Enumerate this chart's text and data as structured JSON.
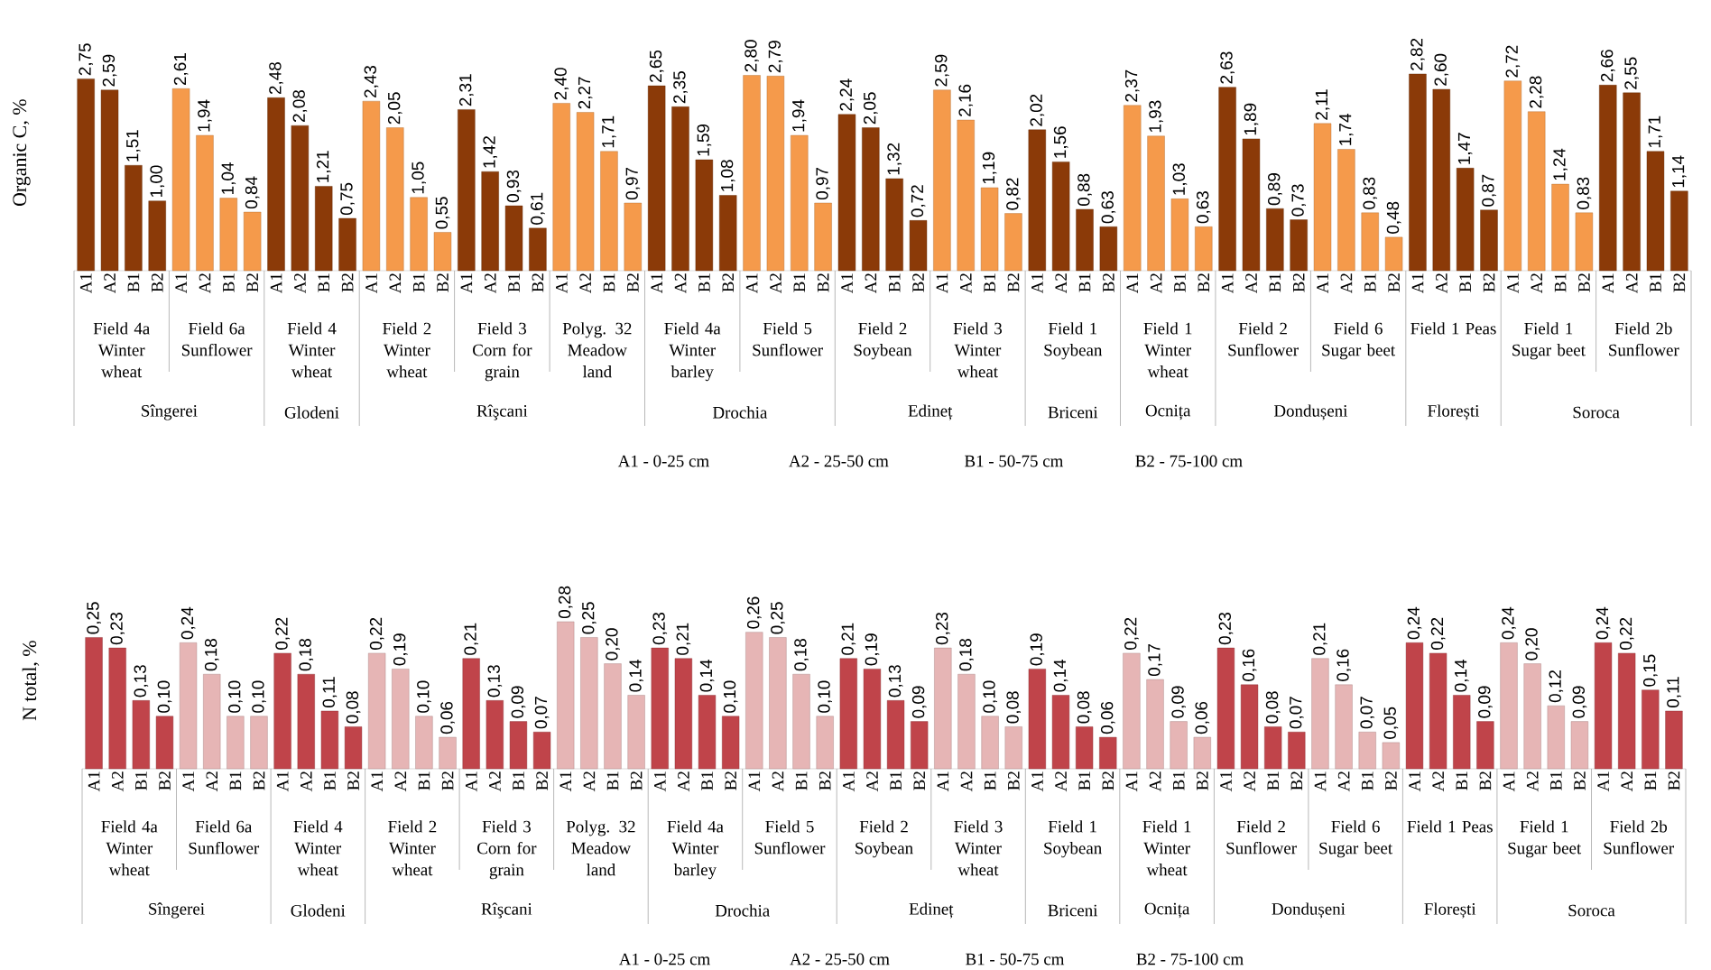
{
  "chart_data": [
    {
      "type": "bar",
      "ylabel": "Organic C, %",
      "categories": [
        "A1",
        "A2",
        "B1",
        "B2",
        "A1",
        "A2",
        "B1",
        "B2",
        "A1",
        "A2",
        "B1",
        "B2",
        "A1",
        "A2",
        "B1",
        "B2",
        "A1",
        "A2",
        "B1",
        "B2",
        "A1",
        "A2",
        "B1",
        "B2",
        "A1",
        "A2",
        "B1",
        "B2",
        "A1",
        "A2",
        "B1",
        "B2",
        "A1",
        "A2",
        "B1",
        "B2",
        "A1",
        "A2",
        "B1",
        "B2",
        "A1",
        "A2",
        "B1",
        "B2",
        "A1",
        "A2",
        "B1",
        "B2",
        "A1",
        "A2",
        "B1",
        "B2",
        "A1",
        "A2",
        "B1",
        "B2",
        "A1",
        "A2",
        "B1",
        "B2",
        "A1",
        "A2",
        "B1",
        "B2",
        "A1",
        "A2",
        "B1",
        "B2"
      ],
      "values": [
        2.75,
        2.59,
        1.51,
        1.0,
        2.61,
        1.94,
        1.04,
        0.84,
        2.48,
        2.08,
        1.21,
        0.75,
        2.43,
        2.05,
        1.05,
        0.55,
        2.31,
        1.42,
        0.93,
        0.61,
        2.4,
        2.27,
        1.71,
        0.97,
        2.65,
        2.35,
        1.59,
        1.08,
        2.8,
        2.79,
        1.94,
        0.97,
        2.24,
        2.05,
        1.32,
        0.72,
        2.59,
        2.16,
        1.19,
        0.82,
        2.02,
        1.56,
        0.88,
        0.63,
        2.37,
        1.93,
        1.03,
        0.63,
        2.63,
        1.89,
        0.89,
        0.73,
        2.11,
        1.74,
        0.83,
        0.48,
        2.82,
        2.6,
        1.47,
        0.87,
        2.72,
        2.28,
        1.24,
        0.83,
        2.66,
        2.55,
        1.71,
        1.14
      ],
      "value_labels": [
        "2,75",
        "2,59",
        "1,51",
        "1,00",
        "2,61",
        "1,94",
        "1,04",
        "0,84",
        "2,48",
        "2,08",
        "1,21",
        "0,75",
        "2,43",
        "2,05",
        "1,05",
        "0,55",
        "2,31",
        "1,42",
        "0,93",
        "0,61",
        "2,40",
        "2,27",
        "1,71",
        "0,97",
        "2,65",
        "2,35",
        "1,59",
        "1,08",
        "2,80",
        "2,79",
        "1,94",
        "0,97",
        "2,24",
        "2,05",
        "1,32",
        "0,72",
        "2,59",
        "2,16",
        "1,19",
        "0,82",
        "2,02",
        "1,56",
        "0,88",
        "0,63",
        "2,37",
        "1,93",
        "1,03",
        "0,63",
        "2,63",
        "1,89",
        "0,89",
        "0,73",
        "2,11",
        "1,74",
        "0,83",
        "0,48",
        "2,82",
        "2,60",
        "1,47",
        "0,87",
        "2,72",
        "2,28",
        "1,24",
        "0,83",
        "2,66",
        "2,55",
        "1,71",
        "1,14"
      ],
      "colors": [
        "#8b3a08",
        "#8b3a08",
        "#8b3a08",
        "#8b3a08",
        "#f59a4b",
        "#f59a4b",
        "#f59a4b",
        "#f59a4b",
        "#8b3a08",
        "#8b3a08",
        "#8b3a08",
        "#8b3a08",
        "#f59a4b",
        "#f59a4b",
        "#f59a4b",
        "#f59a4b",
        "#8b3a08",
        "#8b3a08",
        "#8b3a08",
        "#8b3a08",
        "#f59a4b",
        "#f59a4b",
        "#f59a4b",
        "#f59a4b",
        "#8b3a08",
        "#8b3a08",
        "#8b3a08",
        "#8b3a08",
        "#f59a4b",
        "#f59a4b",
        "#f59a4b",
        "#f59a4b",
        "#8b3a08",
        "#8b3a08",
        "#8b3a08",
        "#8b3a08",
        "#f59a4b",
        "#f59a4b",
        "#f59a4b",
        "#f59a4b",
        "#8b3a08",
        "#8b3a08",
        "#8b3a08",
        "#8b3a08",
        "#f59a4b",
        "#f59a4b",
        "#f59a4b",
        "#f59a4b",
        "#8b3a08",
        "#8b3a08",
        "#8b3a08",
        "#8b3a08",
        "#f59a4b",
        "#f59a4b",
        "#f59a4b",
        "#f59a4b",
        "#8b3a08",
        "#8b3a08",
        "#8b3a08",
        "#8b3a08",
        "#f59a4b",
        "#f59a4b",
        "#f59a4b",
        "#f59a4b",
        "#8b3a08",
        "#8b3a08",
        "#8b3a08",
        "#8b3a08"
      ],
      "annotations": [
        "Field 4a Winter wheat",
        "Field 6a Sunflower",
        "Field 4 Winter wheat",
        "Field 2 Winter wheat",
        "Field 3 Corn for grain",
        "Polyg. 32 Meadow land",
        "Field 4a Winter barley",
        "Field 5 Sunflower",
        "Field 2 Soybean",
        "Field 3 Winter wheat",
        "Field 1 Soybean",
        "Field 1 Winter wheat",
        "Field 2 Sunflower",
        "Field 6 Sugar beet",
        "Field 1 Peas",
        "Field 1 Sugar beet",
        "Field 2b Sunflower",
        "Sîngerei",
        "Glodeni",
        "Rîşcani",
        "Drochia",
        "Edineț",
        "Briceni",
        "Ocnița",
        "Dondușeni",
        "Florești",
        "Soroca",
        "A1 - 0-25 cm",
        "A2 - 25-50 cm",
        "B1 - 50-75 cm",
        "B2 - 75-100 cm"
      ]
    },
    {
      "type": "bar",
      "ylabel": "N total, %",
      "categories": [
        "A1",
        "A2",
        "B1",
        "B2",
        "A1",
        "A2",
        "B1",
        "B2",
        "A1",
        "A2",
        "B1",
        "B2",
        "A1",
        "A2",
        "B1",
        "B2",
        "A1",
        "A2",
        "B1",
        "B2",
        "A1",
        "A2",
        "B1",
        "B2",
        "A1",
        "A2",
        "B1",
        "B2",
        "A1",
        "A2",
        "B1",
        "B2",
        "A1",
        "A2",
        "B1",
        "B2",
        "A1",
        "A2",
        "B1",
        "B2",
        "A1",
        "A2",
        "B1",
        "B2",
        "A1",
        "A2",
        "B1",
        "B2",
        "A1",
        "A2",
        "B1",
        "B2",
        "A1",
        "A2",
        "B1",
        "B2",
        "A1",
        "A2",
        "B1",
        "B2",
        "A1",
        "A2",
        "B1",
        "B2",
        "A1",
        "A2",
        "B1",
        "B2"
      ],
      "values": [
        0.25,
        0.23,
        0.13,
        0.1,
        0.24,
        0.18,
        0.1,
        0.1,
        0.22,
        0.18,
        0.11,
        0.08,
        0.22,
        0.19,
        0.1,
        0.06,
        0.21,
        0.13,
        0.09,
        0.07,
        0.28,
        0.25,
        0.2,
        0.14,
        0.23,
        0.21,
        0.14,
        0.1,
        0.26,
        0.25,
        0.18,
        0.1,
        0.21,
        0.19,
        0.13,
        0.09,
        0.23,
        0.18,
        0.1,
        0.08,
        0.19,
        0.14,
        0.08,
        0.06,
        0.22,
        0.17,
        0.09,
        0.06,
        0.23,
        0.16,
        0.08,
        0.07,
        0.21,
        0.16,
        0.07,
        0.05,
        0.24,
        0.22,
        0.14,
        0.09,
        0.24,
        0.2,
        0.12,
        0.09,
        0.24,
        0.22,
        0.15,
        0.11
      ],
      "value_labels": [
        "0,25",
        "0,23",
        "0,13",
        "0,10",
        "0,24",
        "0,18",
        "0,10",
        "0,10",
        "0,22",
        "0,18",
        "0,11",
        "0,08",
        "0,22",
        "0,19",
        "0,10",
        "0,06",
        "0,21",
        "0,13",
        "0,09",
        "0,07",
        "0,28",
        "0,25",
        "0,20",
        "0,14",
        "0,23",
        "0,21",
        "0,14",
        "0,10",
        "0,26",
        "0,25",
        "0,18",
        "0,10",
        "0,21",
        "0,19",
        "0,13",
        "0,09",
        "0,23",
        "0,18",
        "0,10",
        "0,08",
        "0,19",
        "0,14",
        "0,08",
        "0,06",
        "0,22",
        "0,17",
        "0,09",
        "0,06",
        "0,23",
        "0,16",
        "0,08",
        "0,07",
        "0,21",
        "0,16",
        "0,07",
        "0,05",
        "0,24",
        "0,22",
        "0,14",
        "0,09",
        "0,24",
        "0,20",
        "0,12",
        "0,09",
        "0,24",
        "0,22",
        "0,15",
        "0,11"
      ],
      "colors": [
        "#c0444a",
        "#c0444a",
        "#c0444a",
        "#c0444a",
        "#e6b5b5",
        "#e6b5b5",
        "#e6b5b5",
        "#e6b5b5",
        "#c0444a",
        "#c0444a",
        "#c0444a",
        "#c0444a",
        "#e6b5b5",
        "#e6b5b5",
        "#e6b5b5",
        "#e6b5b5",
        "#c0444a",
        "#c0444a",
        "#c0444a",
        "#c0444a",
        "#e6b5b5",
        "#e6b5b5",
        "#e6b5b5",
        "#e6b5b5",
        "#c0444a",
        "#c0444a",
        "#c0444a",
        "#c0444a",
        "#e6b5b5",
        "#e6b5b5",
        "#e6b5b5",
        "#e6b5b5",
        "#c0444a",
        "#c0444a",
        "#c0444a",
        "#c0444a",
        "#e6b5b5",
        "#e6b5b5",
        "#e6b5b5",
        "#e6b5b5",
        "#c0444a",
        "#c0444a",
        "#c0444a",
        "#c0444a",
        "#e6b5b5",
        "#e6b5b5",
        "#e6b5b5",
        "#e6b5b5",
        "#c0444a",
        "#c0444a",
        "#c0444a",
        "#c0444a",
        "#e6b5b5",
        "#e6b5b5",
        "#e6b5b5",
        "#e6b5b5",
        "#c0444a",
        "#c0444a",
        "#c0444a",
        "#c0444a",
        "#e6b5b5",
        "#e6b5b5",
        "#e6b5b5",
        "#e6b5b5",
        "#c0444a",
        "#c0444a",
        "#c0444a",
        "#c0444a"
      ],
      "annotations": [
        "Field 4a Winter wheat",
        "Field 6a Sunflower",
        "Field 4 Winter wheat",
        "Field 2 Winter wheat",
        "Field 3 Corn for grain",
        "Polyg. 32 Meadow land",
        "Field 4a Winter barley",
        "Field 5 Sunflower",
        "Field 2 Soybean",
        "Field 3 Winter wheat",
        "Field 1 Soybean",
        "Field 1 Winter wheat",
        "Field 2 Sunflower",
        "Field 6 Sugar beet",
        "Field 1 Peas",
        "Field 1 Sugar beet",
        "Field 2b Sunflower",
        "Sîngerei",
        "Glodeni",
        "Rîşcani",
        "Drochia",
        "Edineț",
        "Briceni",
        "Ocnița",
        "Dondușeni",
        "Florești",
        "Soroca",
        "A1 - 0-25 cm",
        "A2 - 25-50 cm",
        "B1 - 50-75 cm",
        "B2 - 75-100 cm"
      ]
    }
  ]
}
